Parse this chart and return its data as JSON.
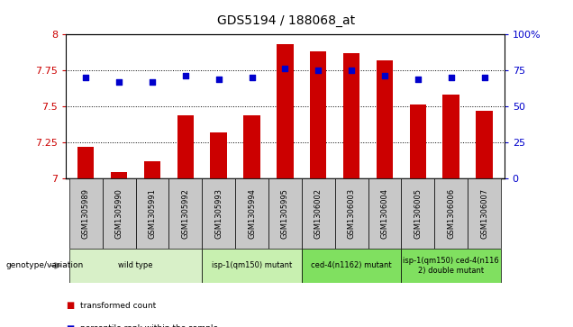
{
  "title": "GDS5194 / 188068_at",
  "samples": [
    "GSM1305989",
    "GSM1305990",
    "GSM1305991",
    "GSM1305992",
    "GSM1305993",
    "GSM1305994",
    "GSM1305995",
    "GSM1306002",
    "GSM1306003",
    "GSM1306004",
    "GSM1306005",
    "GSM1306006",
    "GSM1306007"
  ],
  "transformed_count": [
    7.22,
    7.04,
    7.12,
    7.44,
    7.32,
    7.44,
    7.93,
    7.88,
    7.87,
    7.82,
    7.51,
    7.58,
    7.47
  ],
  "percentile_rank": [
    70,
    67,
    67,
    71,
    69,
    70,
    76,
    75,
    75,
    71,
    69,
    70,
    70
  ],
  "group_defs": [
    [
      0,
      3,
      "wild type",
      "#d8f0c8"
    ],
    [
      4,
      6,
      "isp-1(qm150) mutant",
      "#c8f0b0"
    ],
    [
      7,
      9,
      "ced-4(n1162) mutant",
      "#80e060"
    ],
    [
      10,
      12,
      "isp-1(qm150) ced-4(n116\n2) double mutant",
      "#80e060"
    ]
  ],
  "ylim_left": [
    7.0,
    8.0
  ],
  "ylim_right": [
    0,
    100
  ],
  "yticks_left": [
    7.0,
    7.25,
    7.5,
    7.75,
    8.0
  ],
  "yticks_right": [
    0,
    25,
    50,
    75,
    100
  ],
  "bar_color": "#cc0000",
  "dot_color": "#0000cc",
  "background_color": "#ffffff",
  "header_bg": "#c8c8c8",
  "plot_bg": "#ffffff",
  "title_fontsize": 10,
  "tick_fontsize": 8,
  "label_fontsize": 6,
  "group_fontsize": 6
}
